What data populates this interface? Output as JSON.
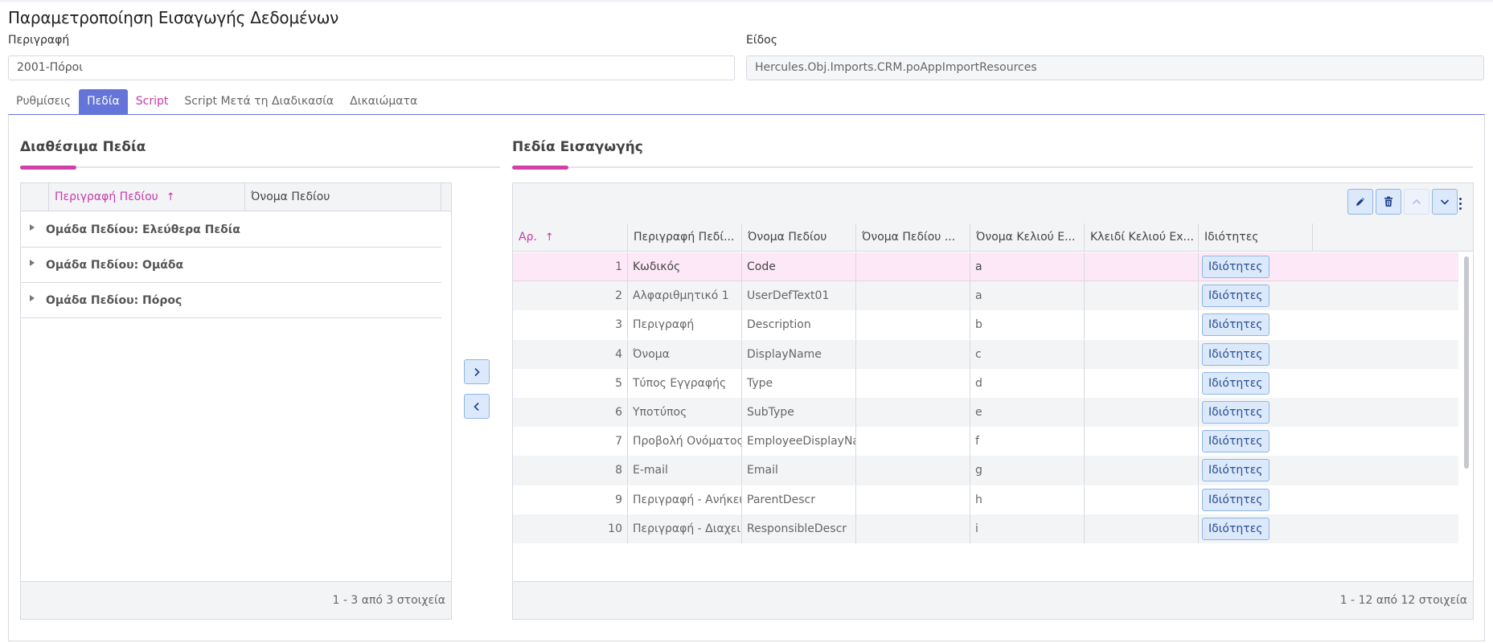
{
  "page": {
    "title": "Παραμετροποίηση Εισαγωγής Δεδομένων"
  },
  "form": {
    "description_label": "Περιγραφή",
    "description_value": "2001-Πόροι",
    "type_label": "Είδος",
    "type_value": "Hercules.Obj.Imports.CRM.poAppImportResources"
  },
  "tabs": [
    {
      "label": "Ρυθμίσεις"
    },
    {
      "label": "Πεδία"
    },
    {
      "label": "Script"
    },
    {
      "label": "Script Μετά τη Διαδικασία"
    },
    {
      "label": "Δικαιώματα"
    }
  ],
  "available": {
    "title": "Διαθέσιμα Πεδία",
    "columns": [
      "Περιγραφή Πεδίου",
      "Όνομα Πεδίου"
    ],
    "sort_indicator": "↑",
    "groups": [
      {
        "label": "Ομάδα Πεδίου: Ελεύθερα Πεδία"
      },
      {
        "label": "Ομάδα Πεδίου: Ομάδα"
      },
      {
        "label": "Ομάδα Πεδίου: Πόρος"
      }
    ],
    "footer": "1 - 3 από 3 στοιχεία"
  },
  "move": {
    "add_icon": "chevron-right-icon",
    "remove_icon": "chevron-left-icon"
  },
  "imported": {
    "title": "Πεδία Εισαγωγής",
    "toolbar_icons": [
      "pencil-icon",
      "trash-icon",
      "chevron-up-icon",
      "chevron-down-icon",
      "kebab-menu-icon"
    ],
    "columns": [
      "Αρ.",
      "Περιγραφή Πεδί...",
      "Όνομα Πεδίου",
      "Όνομα Πεδίου ...",
      "Όνομα Κελιού Ε...",
      "Κλειδί Κελιού Ex...",
      "Ιδιότητες"
    ],
    "sort_indicator": "↑",
    "button_label": "Ιδιότητες",
    "rows": [
      {
        "no": "1",
        "desc": "Κωδικός",
        "name": "Code",
        "name2": "",
        "cell": "a",
        "key": ""
      },
      {
        "no": "2",
        "desc": "Αλφαριθμητικό 1",
        "name": "UserDefText01",
        "name2": "",
        "cell": "a",
        "key": ""
      },
      {
        "no": "3",
        "desc": "Περιγραφή",
        "name": "Description",
        "name2": "",
        "cell": "b",
        "key": ""
      },
      {
        "no": "4",
        "desc": "Όνομα",
        "name": "DisplayName",
        "name2": "",
        "cell": "c",
        "key": ""
      },
      {
        "no": "5",
        "desc": "Τύπος Εγγραφής",
        "name": "Type",
        "name2": "",
        "cell": "d",
        "key": ""
      },
      {
        "no": "6",
        "desc": "Υποτύπος",
        "name": "SubType",
        "name2": "",
        "cell": "e",
        "key": ""
      },
      {
        "no": "7",
        "desc": "Προβολή Ονόματος - Εργ",
        "name": "EmployeeDisplayName",
        "name2": "",
        "cell": "f",
        "key": ""
      },
      {
        "no": "8",
        "desc": "E-mail",
        "name": "Email",
        "name2": "",
        "cell": "g",
        "key": ""
      },
      {
        "no": "9",
        "desc": "Περιγραφή - Ανήκει σε",
        "name": "ParentDescr",
        "name2": "",
        "cell": "h",
        "key": ""
      },
      {
        "no": "10",
        "desc": "Περιγραφή - Διαχειριστή",
        "name": "ResponsibleDescr",
        "name2": "",
        "cell": "i",
        "key": ""
      }
    ],
    "footer": "1 - 12 από 12 στοιχεία"
  },
  "colors": {
    "accent": "#6574d8",
    "magenta": "#c63aa8",
    "selected_row": "#fce8f6",
    "button_bg": "#dbe9fb"
  }
}
